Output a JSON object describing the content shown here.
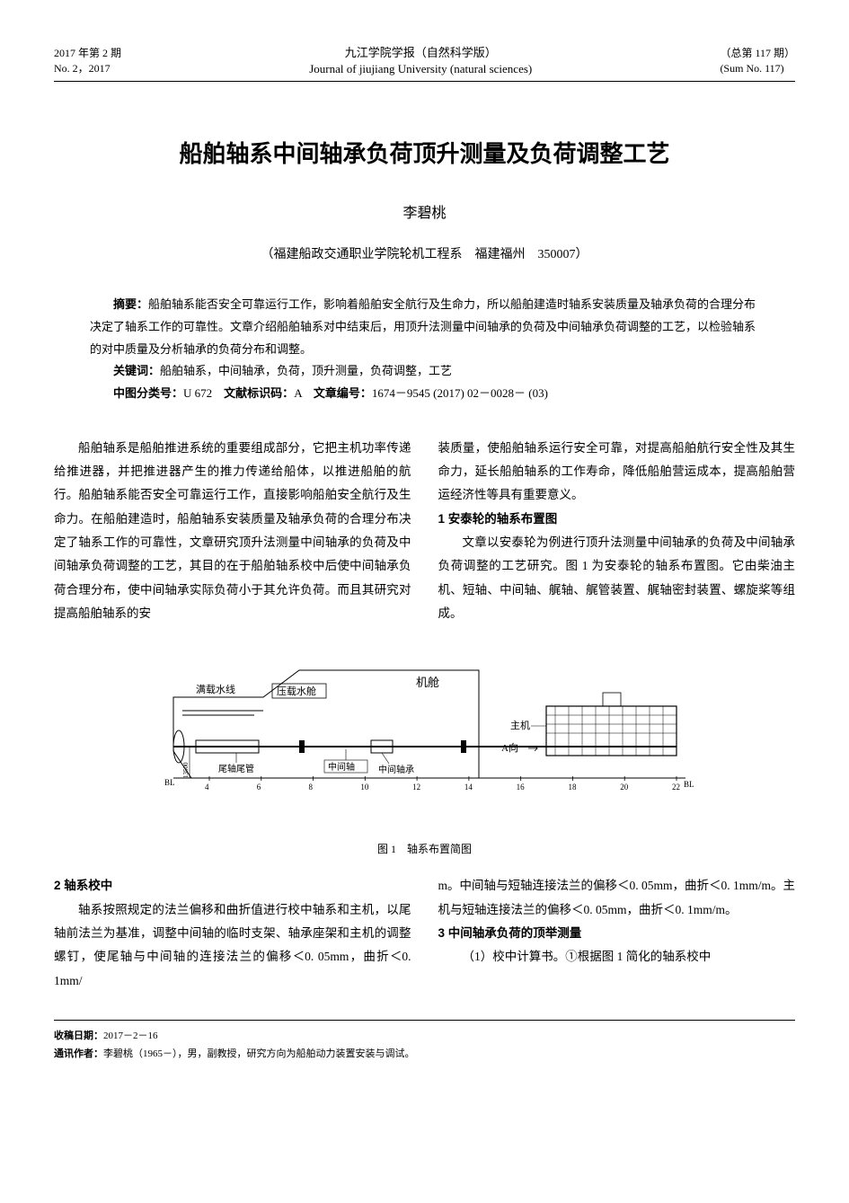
{
  "header": {
    "left_line1": "2017 年第 2 期",
    "left_line2": "No. 2，2017",
    "center_line1": "九江学院学报（自然科学版）",
    "center_line2": "Journal of jiujiang University (natural sciences)",
    "right_line1": "（总第 117 期）",
    "right_line2": "(Sum No. 117)"
  },
  "title": "船舶轴系中间轴承负荷顶升测量及负荷调整工艺",
  "author": "李碧桃",
  "affiliation": "（福建船政交通职业学院轮机工程系　福建福州　350007）",
  "abstract": {
    "label": "摘要：",
    "text": "船舶轴系能否安全可靠运行工作，影响着船舶安全航行及生命力，所以船舶建造时轴系安装质量及轴承负荷的合理分布决定了轴系工作的可靠性。文章介绍船舶轴系对中结束后，用顶升法测量中间轴承的负荷及中间轴承负荷调整的工艺，以检验轴系的对中质量及分析轴承的负荷分布和调整。"
  },
  "keywords": {
    "label": "关键词：",
    "text": "船舶轴系，中间轴承，负荷，顶升测量，负荷调整，工艺"
  },
  "clc": {
    "label_clc": "中图分类号：",
    "clc_value": "U 672",
    "label_doc": "文献标识码：",
    "doc_value": "A",
    "label_id": "文章编号：",
    "id_value": "1674－9545 (2017) 02－0028－ (03)"
  },
  "col1": {
    "p1": "船舶轴系是船舶推进系统的重要组成部分，它把主机功率传递给推进器，并把推进器产生的推力传递给船体，以推进船舶的航行。船舶轴系能否安全可靠运行工作，直接影响船舶安全航行及生命力。在船舶建造时，船舶轴系安装质量及轴承负荷的合理分布决定了轴系工作的可靠性，文章研究顶升法测量中间轴承的负荷及中间轴承负荷调整的工艺，其目的在于船舶轴系校中后使中间轴承负荷合理分布，使中间轴承实际负荷小于其允许负荷。而且其研究对提高船舶轴系的安"
  },
  "col2": {
    "p1": "装质量，使船舶轴系运行安全可靠，对提高船舶航行安全性及其生命力，延长船舶轴系的工作寿命，降低船舶营运成本，提高船舶营运经济性等具有重要意义。",
    "s1_title": "1 安泰轮的轴系布置图",
    "p2": "文章以安泰轮为例进行顶升法测量中间轴承的负荷及中间轴承负荷调整的工艺研究。图 1 为安泰轮的轴系布置图。它由柴油主机、短轴、中间轴、艉轴、艉管装置、艉轴密封装置、螺旋桨等组成。"
  },
  "figure": {
    "caption": "图 1　轴系布置简图",
    "labels": {
      "waterline": "满载水线",
      "ballast": "压载水舱",
      "engine_room": "机舱",
      "main_engine": "主机",
      "intermediate_shaft": "中间轴",
      "intermediate_bearing": "中间轴承",
      "stern_tube": "尾轴尾管",
      "a_direction": "A向",
      "height": "13500",
      "bl_label": "BL"
    },
    "x_ticks": [
      4,
      6,
      8,
      10,
      12,
      14,
      16,
      18,
      20,
      22
    ],
    "colors": {
      "line": "#000000",
      "bg": "#ffffff"
    }
  },
  "col1b": {
    "s2_title": "2 轴系校中",
    "p1": "轴系按照规定的法兰偏移和曲折值进行校中轴系和主机，以尾轴前法兰为基准，调整中间轴的临时支架、轴承座架和主机的调整螺钉，使尾轴与中间轴的连接法兰的偏移＜0. 05mm，曲折＜0. 1mm/"
  },
  "col2b": {
    "p1": "m。中间轴与短轴连接法兰的偏移＜0. 05mm，曲折＜0. 1mm/m。主机与短轴连接法兰的偏移＜0. 05mm，曲折＜0. 1mm/m。",
    "s3_title": "3 中间轴承负荷的顶举测量",
    "p2": "（1）校中计算书。①根据图 1 简化的轴系校中"
  },
  "footer": {
    "date_label": "收稿日期：",
    "date_value": "2017－2－16",
    "author_label": "通讯作者：",
    "author_value": "李碧桃（1965－），男，副教授，研究方向为船舶动力装置安装与调试。"
  }
}
